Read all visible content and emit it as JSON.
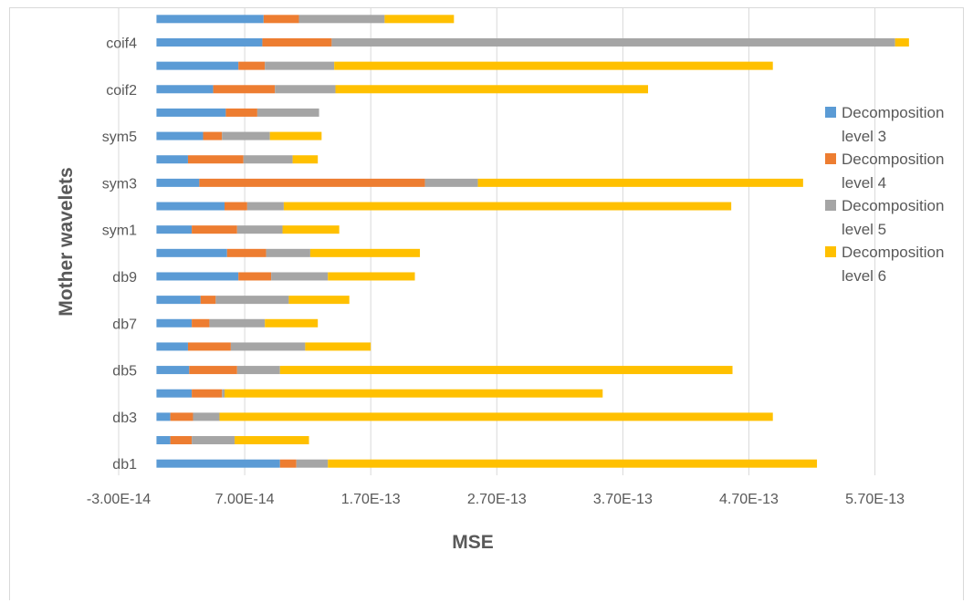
{
  "chart_data": {
    "type": "bar",
    "orientation": "horizontal",
    "stacked": true,
    "xlabel": "MSE",
    "ylabel": "Mother wavelets",
    "xlim": [
      -3e-14,
      6e-13
    ],
    "x_ticks": [
      -3e-14,
      7e-14,
      1.7e-13,
      2.7e-13,
      3.7e-13,
      4.7e-13,
      5.7e-13
    ],
    "x_tick_labels": [
      "-3.00E-14",
      "7.00E-14",
      "1.70E-13",
      "2.70E-13",
      "3.70E-13",
      "4.70E-13",
      "5.70E-13"
    ],
    "grid": "vertical",
    "legend_position": "right",
    "categories": [
      "db1",
      "",
      "db3",
      "",
      "db5",
      "",
      "db7",
      "",
      "db9",
      "",
      "sym1",
      "",
      "sym3",
      "",
      "sym5",
      "",
      "coif2",
      "",
      "coif4",
      ""
    ],
    "series": [
      {
        "name": "Decomposition level 3",
        "color": "#5B9BD5",
        "values": [
          9.8e-14,
          1.1e-14,
          1.1e-14,
          2.8e-14,
          2.6e-14,
          2.5e-14,
          2.8e-14,
          3.5e-14,
          6.5e-14,
          5.6e-14,
          2.8e-14,
          5.4e-14,
          3.4e-14,
          2.5e-14,
          3.7e-14,
          5.5e-14,
          4.5e-14,
          6.5e-14,
          8.4e-14,
          8.5e-14
        ]
      },
      {
        "name": "Decomposition level 4",
        "color": "#ED7D31",
        "values": [
          1.3e-14,
          1.7e-14,
          1.8e-14,
          2.4e-14,
          3.8e-14,
          3.4e-14,
          1.4e-14,
          1.2e-14,
          2.6e-14,
          3.1e-14,
          3.6e-14,
          1.8e-14,
          1.79e-13,
          4.4e-14,
          1.5e-14,
          2.5e-14,
          4.9e-14,
          2.1e-14,
          5.5e-14,
          2.8e-14
        ]
      },
      {
        "name": "Decomposition level 5",
        "color": "#A5A5A5",
        "values": [
          2.5e-14,
          3.4e-14,
          2.1e-14,
          2e-15,
          3.4e-14,
          5.9e-14,
          4.4e-14,
          5.8e-14,
          4.5e-14,
          3.5e-14,
          3.6e-14,
          2.9e-14,
          4.2e-14,
          3.9e-14,
          3.8e-14,
          4.9e-14,
          4.8e-14,
          5.5e-14,
          4.47e-13,
          6.8e-14
        ]
      },
      {
        "name": "Decomposition level 6",
        "color": "#FFC000",
        "values": [
          3.88e-13,
          5.9e-14,
          4.39e-13,
          3e-13,
          3.59e-13,
          5.2e-14,
          4.2e-14,
          4.8e-14,
          6.9e-14,
          8.7e-14,
          4.5e-14,
          3.55e-13,
          2.58e-13,
          2e-14,
          4.1e-14,
          0,
          2.48e-13,
          3.48e-13,
          1.1e-14,
          5.5e-14
        ]
      }
    ]
  }
}
